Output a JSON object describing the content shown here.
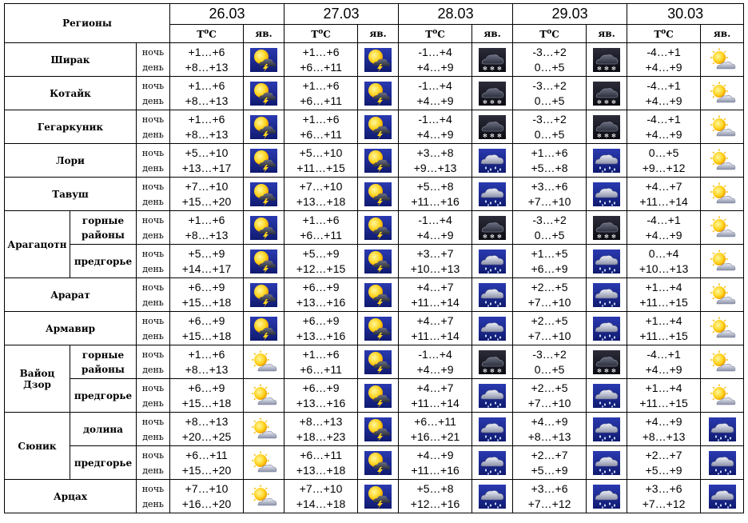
{
  "header": {
    "regions_label": "Регионы",
    "temp_label": "T",
    "temp_sup": "o",
    "temp_unit": "C",
    "phen_label": "яв.",
    "dates": [
      "26.03",
      "27.03",
      "28.03",
      "29.03",
      "30.03"
    ]
  },
  "time_of_day": {
    "night": "ночь",
    "day": "день"
  },
  "icon_types": {
    "S": "sun-cloud-icon",
    "T": "sun-thunderstorm-icon",
    "W": "snow-cloud-icon",
    "R": "rain-cloud-icon"
  },
  "colors": {
    "sun": "#ffd21a",
    "storm_bg": "#1a2a9a",
    "snow_bg": "#14141e",
    "rain_bg": "#2a2e9a",
    "cloud": "#bfc4d6"
  },
  "rows": [
    {
      "region": "Ширак",
      "sub": null,
      "days": [
        {
          "night": "+1…+6",
          "day": "+8…+13",
          "icon": "T"
        },
        {
          "night": "+1…+6",
          "day": "+6…+11",
          "icon": "T"
        },
        {
          "night": "-1…+4",
          "day": "+4…+9",
          "icon": "W"
        },
        {
          "night": "-3…+2",
          "day": "0…+5",
          "icon": "W"
        },
        {
          "night": "-4…+1",
          "day": "+4…+9",
          "icon": "S"
        }
      ]
    },
    {
      "region": "Котайк",
      "sub": null,
      "days": [
        {
          "night": "+1…+6",
          "day": "+8…+13",
          "icon": "T"
        },
        {
          "night": "+1…+6",
          "day": "+6…+11",
          "icon": "T"
        },
        {
          "night": "-1…+4",
          "day": "+4…+9",
          "icon": "W"
        },
        {
          "night": "-3…+2",
          "day": "0…+5",
          "icon": "W"
        },
        {
          "night": "-4…+1",
          "day": "+4…+9",
          "icon": "S"
        }
      ]
    },
    {
      "region": "Гегаркуник",
      "sub": null,
      "days": [
        {
          "night": "+1…+6",
          "day": "+8…+13",
          "icon": "T"
        },
        {
          "night": "+1…+6",
          "day": "+6…+11",
          "icon": "T"
        },
        {
          "night": "-1…+4",
          "day": "+4…+9",
          "icon": "W"
        },
        {
          "night": "-3…+2",
          "day": "0…+5",
          "icon": "W"
        },
        {
          "night": "-4…+1",
          "day": "+4…+9",
          "icon": "S"
        }
      ]
    },
    {
      "region": "Лори",
      "sub": null,
      "days": [
        {
          "night": "+5…+10",
          "day": "+13…+17",
          "icon": "T"
        },
        {
          "night": "+5…+10",
          "day": "+11…+15",
          "icon": "T"
        },
        {
          "night": "+3…+8",
          "day": "+9…+13",
          "icon": "R"
        },
        {
          "night": "+1…+6",
          "day": "+5…+8",
          "icon": "R"
        },
        {
          "night": "0…+5",
          "day": "+9…+12",
          "icon": "S"
        }
      ]
    },
    {
      "region": "Тавуш",
      "sub": null,
      "days": [
        {
          "night": "+7…+10",
          "day": "+15…+20",
          "icon": "T"
        },
        {
          "night": "+7…+10",
          "day": "+13…+18",
          "icon": "T"
        },
        {
          "night": "+5…+8",
          "day": "+11…+16",
          "icon": "R"
        },
        {
          "night": "+3…+6",
          "day": "+7…+10",
          "icon": "R"
        },
        {
          "night": "+4…+7",
          "day": "+11…+14",
          "icon": "S"
        }
      ]
    },
    {
      "region": "Арагацотн",
      "sub": "горные районы",
      "days": [
        {
          "night": "+1…+6",
          "day": "+8…+13",
          "icon": "T"
        },
        {
          "night": "+1…+6",
          "day": "+6…+11",
          "icon": "T"
        },
        {
          "night": "-1…+4",
          "day": "+4…+9",
          "icon": "W"
        },
        {
          "night": "-3…+2",
          "day": "0…+5",
          "icon": "W"
        },
        {
          "night": "-4…+1",
          "day": "+4…+9",
          "icon": "S"
        }
      ]
    },
    {
      "region": "Арагацотн",
      "sub": "предгорье",
      "days": [
        {
          "night": "+5…+9",
          "day": "+14…+17",
          "icon": "T"
        },
        {
          "night": "+5…+9",
          "day": "+12…+15",
          "icon": "T"
        },
        {
          "night": "+3…+7",
          "day": "+10…+13",
          "icon": "R"
        },
        {
          "night": "+1…+5",
          "day": "+6…+9",
          "icon": "R"
        },
        {
          "night": "0…+4",
          "day": "+10…+13",
          "icon": "S"
        }
      ]
    },
    {
      "region": "Арарат",
      "sub": null,
      "days": [
        {
          "night": "+6…+9",
          "day": "+15…+18",
          "icon": "T"
        },
        {
          "night": "+6…+9",
          "day": "+13…+16",
          "icon": "T"
        },
        {
          "night": "+4…+7",
          "day": "+11…+14",
          "icon": "R"
        },
        {
          "night": "+2…+5",
          "day": "+7…+10",
          "icon": "R"
        },
        {
          "night": "+1…+4",
          "day": "+11…+15",
          "icon": "S"
        }
      ]
    },
    {
      "region": "Армавир",
      "sub": null,
      "days": [
        {
          "night": "+6…+9",
          "day": "+15…+18",
          "icon": "T"
        },
        {
          "night": "+6…+9",
          "day": "+13…+16",
          "icon": "T"
        },
        {
          "night": "+4…+7",
          "day": "+11…+14",
          "icon": "R"
        },
        {
          "night": "+2…+5",
          "day": "+7…+10",
          "icon": "R"
        },
        {
          "night": "+1…+4",
          "day": "+11…+15",
          "icon": "S"
        }
      ]
    },
    {
      "region": "Вайоц Дзор",
      "sub": "горные районы",
      "days": [
        {
          "night": "+1…+6",
          "day": "+8…+13",
          "icon": "S"
        },
        {
          "night": "+1…+6",
          "day": "+6…+11",
          "icon": "T"
        },
        {
          "night": "-1…+4",
          "day": "+4…+9",
          "icon": "W"
        },
        {
          "night": "-3…+2",
          "day": "0…+5",
          "icon": "W"
        },
        {
          "night": "-4…+1",
          "day": "+4…+9",
          "icon": "S"
        }
      ]
    },
    {
      "region": "Вайоц Дзор",
      "sub": "предгорье",
      "days": [
        {
          "night": "+6…+9",
          "day": "+15…+18",
          "icon": "S"
        },
        {
          "night": "+6…+9",
          "day": "+13…+16",
          "icon": "T"
        },
        {
          "night": "+4…+7",
          "day": "+11…+14",
          "icon": "R"
        },
        {
          "night": "+2…+5",
          "day": "+7…+10",
          "icon": "R"
        },
        {
          "night": "+1…+4",
          "day": "+11…+15",
          "icon": "S"
        }
      ]
    },
    {
      "region": "Сюник",
      "sub": "долина",
      "days": [
        {
          "night": "+8…+13",
          "day": "+20…+25",
          "icon": "S"
        },
        {
          "night": "+8…+13",
          "day": "+18…+23",
          "icon": "T"
        },
        {
          "night": "+6…+11",
          "day": "+16…+21",
          "icon": "R"
        },
        {
          "night": "+4…+9",
          "day": "+8…+13",
          "icon": "R"
        },
        {
          "night": "+4…+9",
          "day": "+8…+13",
          "icon": "R"
        }
      ]
    },
    {
      "region": "Сюник",
      "sub": "предгорье",
      "days": [
        {
          "night": "+6…+11",
          "day": "+15…+20",
          "icon": "S"
        },
        {
          "night": "+6…+11",
          "day": "+13…+18",
          "icon": "T"
        },
        {
          "night": "+4…+9",
          "day": "+11…+16",
          "icon": "R"
        },
        {
          "night": "+2…+7",
          "day": "+5…+9",
          "icon": "R"
        },
        {
          "night": "+2…+7",
          "day": "+5…+9",
          "icon": "R"
        }
      ]
    },
    {
      "region": "Арцах",
      "sub": null,
      "days": [
        {
          "night": "+7…+10",
          "day": "+16…+20",
          "icon": "S"
        },
        {
          "night": "+7…+10",
          "day": "+14…+18",
          "icon": "T"
        },
        {
          "night": "+5…+8",
          "day": "+12…+16",
          "icon": "R"
        },
        {
          "night": "+3…+6",
          "day": "+7…+12",
          "icon": "R"
        },
        {
          "night": "+3…+6",
          "day": "+7…+12",
          "icon": "R"
        }
      ]
    }
  ]
}
